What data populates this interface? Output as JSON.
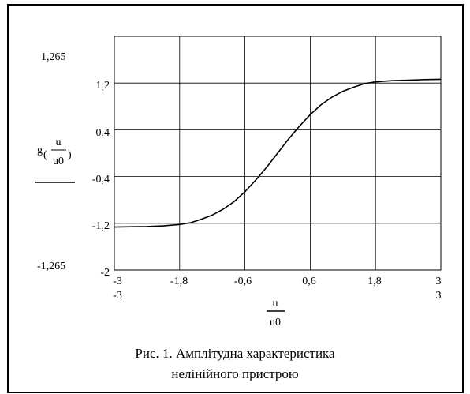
{
  "chart_data": {
    "type": "line",
    "x_ticks": [
      "-3",
      "-1,8",
      "-0,6",
      "0,6",
      "1,8",
      "3"
    ],
    "x_range": [
      "-3",
      "3"
    ],
    "y_ticks": [
      "1,2",
      "0,4",
      "-0,4",
      "-1,2",
      "-2"
    ],
    "y_range": [
      "1,265",
      "-1,265"
    ],
    "ylabel": {
      "func": "g",
      "numerator": "u",
      "denominator": "u0"
    },
    "xlabel": {
      "numerator": "u",
      "denominator": "u0"
    },
    "xlim": [
      -3,
      3
    ],
    "ylim": [
      -2,
      2
    ],
    "grid": true,
    "series": [
      {
        "x": [
          -3,
          -2.7,
          -2.4,
          -2.1,
          -1.8,
          -1.6,
          -1.4,
          -1.2,
          -1.0,
          -0.8,
          -0.6,
          -0.4,
          -0.2,
          0.0,
          0.2,
          0.4,
          0.6,
          0.8,
          1.0,
          1.2,
          1.4,
          1.6,
          1.8,
          2.1,
          2.4,
          2.7,
          3.0
        ],
        "y": [
          -1.265,
          -1.26,
          -1.255,
          -1.245,
          -1.22,
          -1.19,
          -1.13,
          -1.06,
          -0.96,
          -0.83,
          -0.66,
          -0.46,
          -0.24,
          0.0,
          0.24,
          0.46,
          0.66,
          0.83,
          0.96,
          1.06,
          1.13,
          1.19,
          1.22,
          1.24,
          1.25,
          1.26,
          1.265
        ]
      }
    ]
  },
  "caption": {
    "line1": "Рис. 1. Амплітудна характеристика",
    "line2": "нелінійного пристрою"
  }
}
